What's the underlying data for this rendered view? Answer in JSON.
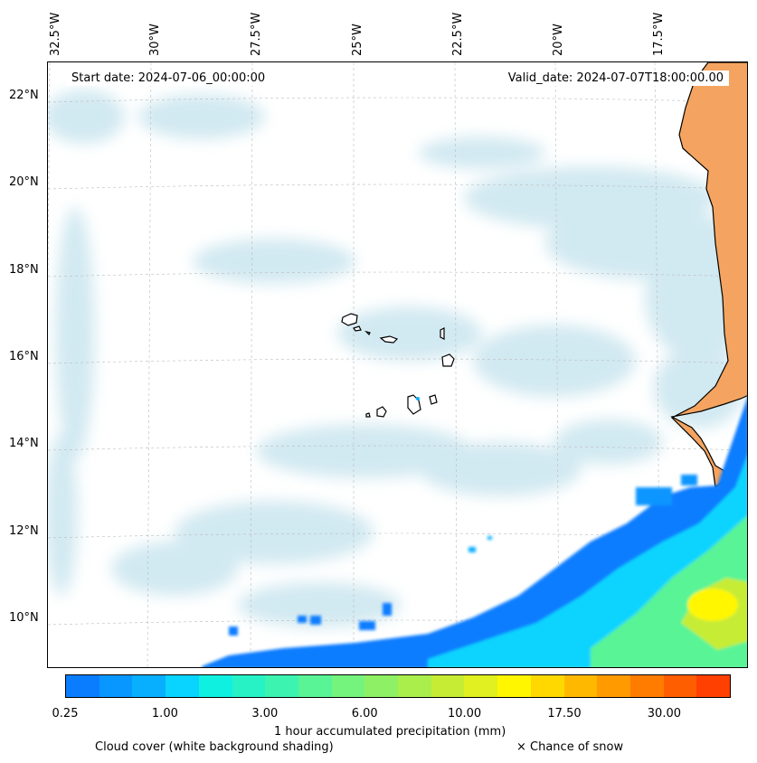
{
  "map": {
    "start_date": "Start date: 2024-07-06_00:00:00",
    "valid_date": "Valid_date: 2024-07-07T18:00:00.00",
    "longitude_labels": [
      "32.5°W",
      "30°W",
      "27.5°W",
      "25°W",
      "22.5°W",
      "20°W",
      "17.5°W"
    ],
    "latitude_labels": [
      "22°N",
      "20°N",
      "18°N",
      "16°N",
      "14°N",
      "12°N",
      "10°N"
    ],
    "colors": {
      "land": "#f4a460",
      "cloud": "#add8e6",
      "coastline": "#000000",
      "gridline": "#bbbbbb"
    }
  },
  "colorbar": {
    "label": "1 hour accumulated precipitation (mm)",
    "tick_labels": [
      "0.25",
      "1.00",
      "3.00",
      "6.00",
      "10.00",
      "17.50",
      "30.00"
    ],
    "colors": [
      "#0a7dff",
      "#0896ff",
      "#08afff",
      "#08d4ff",
      "#10f0e0",
      "#26f2c6",
      "#3cf4b0",
      "#58f496",
      "#74f47c",
      "#8ef064",
      "#aaee4c",
      "#c6ec34",
      "#e0f020",
      "#fff600",
      "#ffd800",
      "#ffb800",
      "#ff9a00",
      "#ff7c00",
      "#ff5e00",
      "#ff4000"
    ]
  },
  "legend": {
    "cloud_cover": "Cloud cover (white background shading)",
    "snow": "× Chance of snow"
  }
}
